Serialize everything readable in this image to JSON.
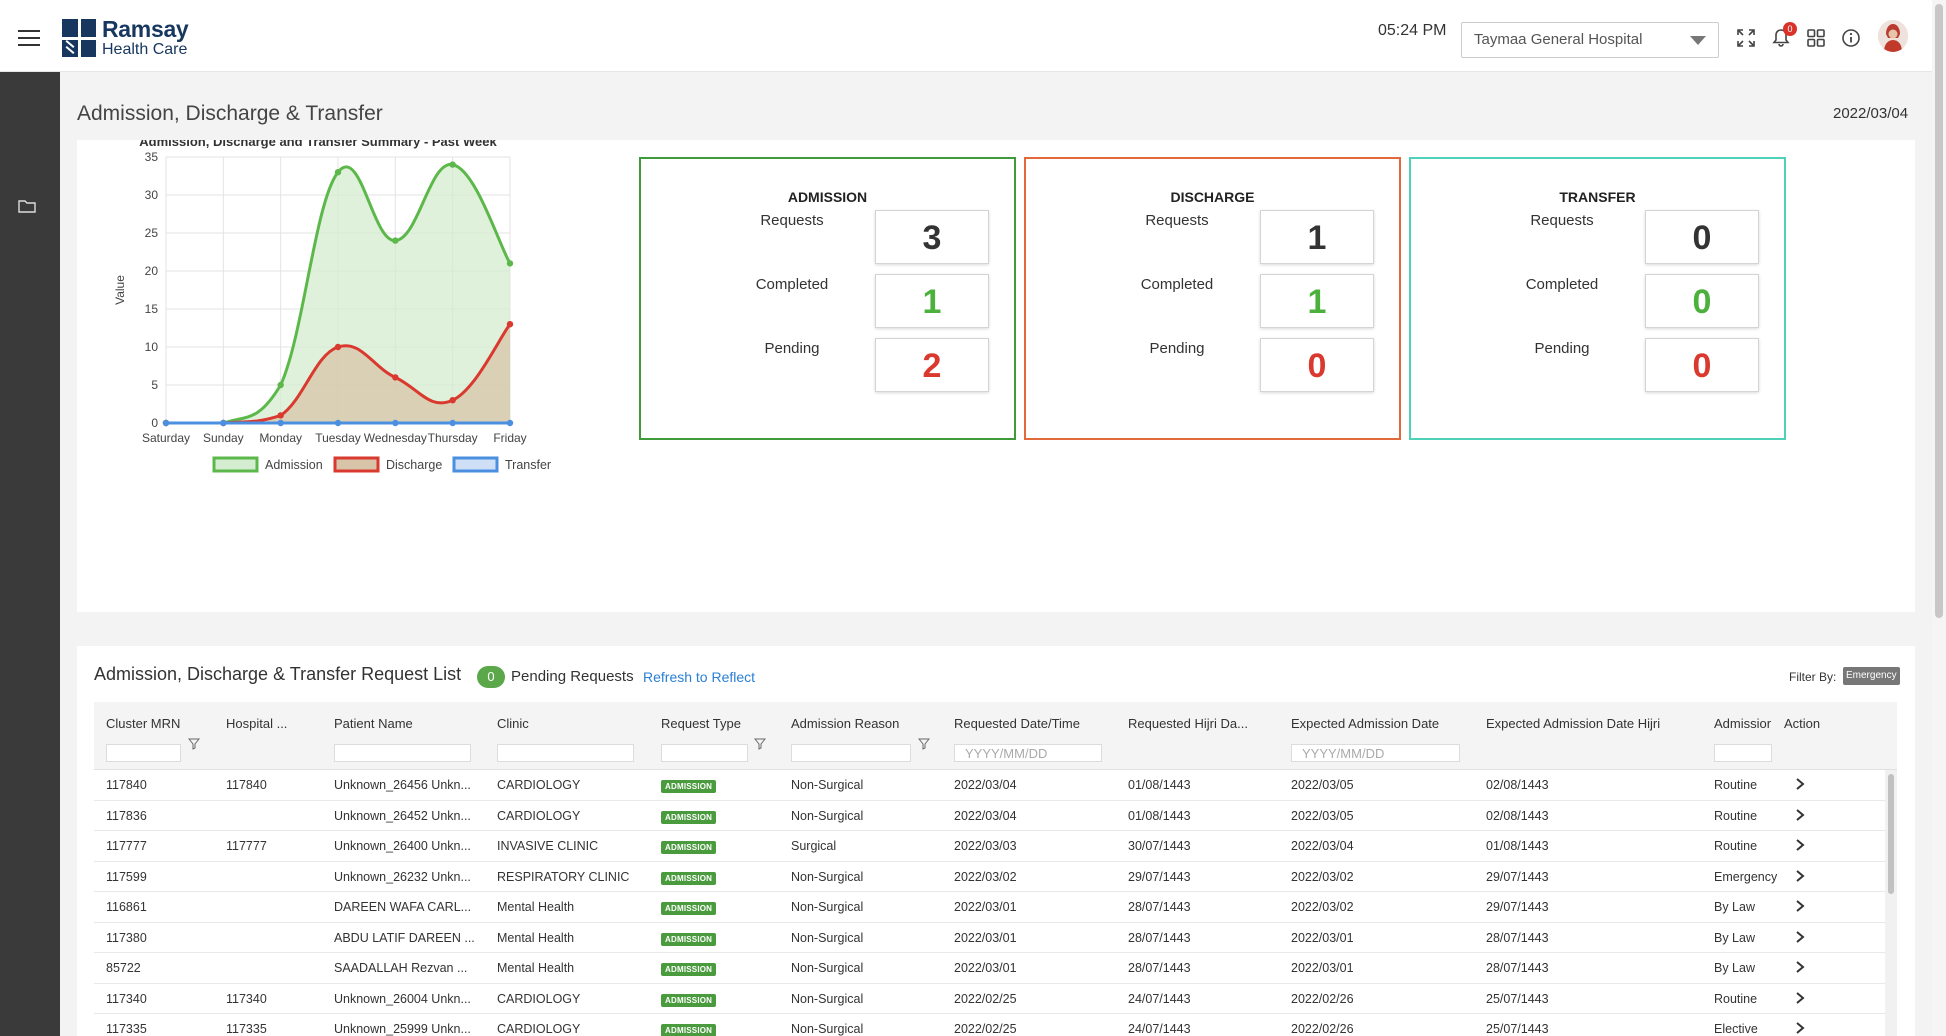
{
  "header": {
    "brand": {
      "line1": "Ramsay",
      "line2": "Health Care"
    },
    "time": "05:24 PM",
    "hospital": "Taymaa General Hospital",
    "notifications_count": "0",
    "icons": [
      "menu-icon",
      "expand-icon",
      "bell-icon",
      "grid-icon",
      "info-icon",
      "user-avatar"
    ]
  },
  "sidebar": {
    "icons": [
      "folder-icon"
    ]
  },
  "page": {
    "title": "Admission, Discharge & Transfer",
    "date": "2022/03/04"
  },
  "chart_data": {
    "type": "area",
    "title": "Admission, Discharge and Transfer Summary - Past Week",
    "xlabel": "",
    "ylabel": "Value",
    "ylim": [
      0,
      35
    ],
    "yticks": [
      0,
      5,
      10,
      15,
      20,
      25,
      30,
      35
    ],
    "categories": [
      "Saturday",
      "Sunday",
      "Monday",
      "Tuesday",
      "Wednesday",
      "Thursday",
      "Friday"
    ],
    "series": [
      {
        "name": "Admission",
        "values": [
          0,
          0,
          5,
          33,
          24,
          34,
          21
        ],
        "color": "#5cb84b",
        "fill": "#d4eccf"
      },
      {
        "name": "Discharge",
        "values": [
          0,
          0,
          1,
          10,
          6,
          3,
          13
        ],
        "color": "#d9392e",
        "fill": "#d8c4a8"
      },
      {
        "name": "Transfer",
        "values": [
          0,
          0,
          0,
          0,
          0,
          0,
          0
        ],
        "color": "#4a8fe0",
        "fill": "#cfe0f6"
      }
    ],
    "grid": true,
    "legend": "bottom"
  },
  "cards": [
    {
      "title": "ADMISSION",
      "border": "#3f9a3a",
      "requests_label": "Requests",
      "completed_label": "Completed",
      "pending_label": "Pending",
      "requests": "3",
      "completed": "1",
      "pending": "2"
    },
    {
      "title": "DISCHARGE",
      "border": "#e26a3a",
      "requests_label": "Requests",
      "completed_label": "Completed",
      "pending_label": "Pending",
      "requests": "1",
      "completed": "1",
      "pending": "0"
    },
    {
      "title": "TRANSFER",
      "border": "#4fd0b8",
      "requests_label": "Requests",
      "completed_label": "Completed",
      "pending_label": "Pending",
      "requests": "0",
      "completed": "0",
      "pending": "0"
    }
  ],
  "colors": {
    "requests": "#333333",
    "completed": "#4cb03c",
    "pending": "#d9392e"
  },
  "list": {
    "title": "Admission, Discharge & Transfer Request List",
    "pending_count": "0",
    "pending_label": "Pending Requests",
    "refresh_label": "Refresh to Reflect",
    "filter_label": "Filter By:",
    "filter_value": "Emergency",
    "date_placeholder": "YYYY/MM/DD",
    "columns": [
      "Cluster MRN",
      "Hospital ...",
      "Patient Name",
      "Clinic",
      "Request Type",
      "Admission Reason",
      "Requested Date/Time",
      "Requested Hijri Da...",
      "Expected Admission Date",
      "Expected Admission Date Hijri",
      "Admissior",
      "Action"
    ],
    "rows": [
      {
        "mrn": "117840",
        "hosp": "117840",
        "name": "Unknown_26456 Unkn...",
        "clinic": "CARDIOLOGY",
        "type": "ADMISSION",
        "reason": "Non-Surgical",
        "req_date": "2022/03/04",
        "req_hijri": "01/08/1443",
        "exp_date": "2022/03/05",
        "exp_hijri": "02/08/1443",
        "adm": "Routine"
      },
      {
        "mrn": "117836",
        "hosp": "",
        "name": "Unknown_26452 Unkn...",
        "clinic": "CARDIOLOGY",
        "type": "ADMISSION",
        "reason": "Non-Surgical",
        "req_date": "2022/03/04",
        "req_hijri": "01/08/1443",
        "exp_date": "2022/03/05",
        "exp_hijri": "02/08/1443",
        "adm": "Routine"
      },
      {
        "mrn": "117777",
        "hosp": "117777",
        "name": "Unknown_26400 Unkn...",
        "clinic": "INVASIVE CLINIC",
        "type": "ADMISSION",
        "reason": "Surgical",
        "req_date": "2022/03/03",
        "req_hijri": "30/07/1443",
        "exp_date": "2022/03/04",
        "exp_hijri": "01/08/1443",
        "adm": "Routine"
      },
      {
        "mrn": "117599",
        "hosp": "",
        "name": "Unknown_26232 Unkn...",
        "clinic": "RESPIRATORY CLINIC",
        "type": "ADMISSION",
        "reason": "Non-Surgical",
        "req_date": "2022/03/02",
        "req_hijri": "29/07/1443",
        "exp_date": "2022/03/02",
        "exp_hijri": "29/07/1443",
        "adm": "Emergency"
      },
      {
        "mrn": "116861",
        "hosp": "",
        "name": "DAREEN WAFA CARL...",
        "clinic": "Mental Health",
        "type": "ADMISSION",
        "reason": "Non-Surgical",
        "req_date": "2022/03/01",
        "req_hijri": "28/07/1443",
        "exp_date": "2022/03/02",
        "exp_hijri": "29/07/1443",
        "adm": "By Law"
      },
      {
        "mrn": "117380",
        "hosp": "",
        "name": "ABDU LATIF DAREEN ...",
        "clinic": "Mental Health",
        "type": "ADMISSION",
        "reason": "Non-Surgical",
        "req_date": "2022/03/01",
        "req_hijri": "28/07/1443",
        "exp_date": "2022/03/01",
        "exp_hijri": "28/07/1443",
        "adm": "By Law"
      },
      {
        "mrn": "85722",
        "hosp": "",
        "name": "SAADALLAH Rezvan ...",
        "clinic": "Mental Health",
        "type": "ADMISSION",
        "reason": "Non-Surgical",
        "req_date": "2022/03/01",
        "req_hijri": "28/07/1443",
        "exp_date": "2022/03/01",
        "exp_hijri": "28/07/1443",
        "adm": "By Law"
      },
      {
        "mrn": "117340",
        "hosp": "117340",
        "name": "Unknown_26004 Unkn...",
        "clinic": "CARDIOLOGY",
        "type": "ADMISSION",
        "reason": "Non-Surgical",
        "req_date": "2022/02/25",
        "req_hijri": "24/07/1443",
        "exp_date": "2022/02/26",
        "exp_hijri": "25/07/1443",
        "adm": "Routine"
      },
      {
        "mrn": "117335",
        "hosp": "117335",
        "name": "Unknown_25999 Unkn...",
        "clinic": "CARDIOLOGY",
        "type": "ADMISSION",
        "reason": "Non-Surgical",
        "req_date": "2022/02/25",
        "req_hijri": "24/07/1443",
        "exp_date": "2022/02/26",
        "exp_hijri": "25/07/1443",
        "adm": "Elective"
      }
    ]
  }
}
